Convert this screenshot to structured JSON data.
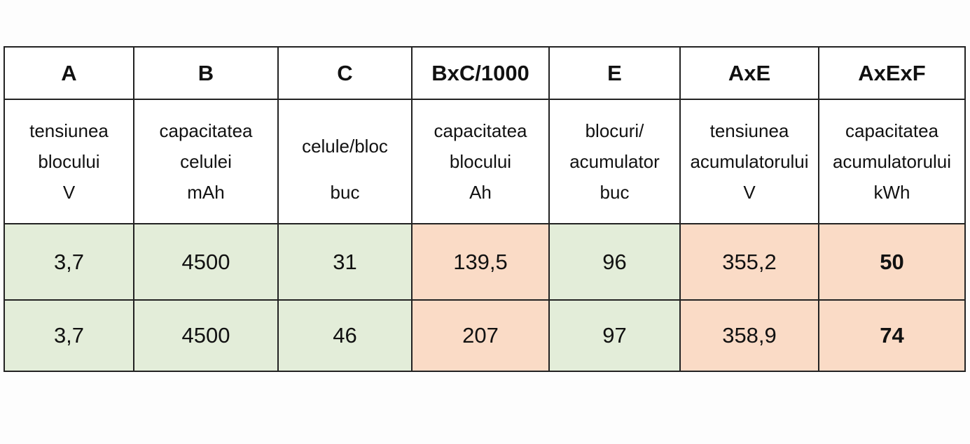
{
  "table": {
    "header": [
      "A",
      "B",
      "C",
      "BxC/1000",
      "E",
      "AxE",
      "AxExF"
    ],
    "descriptions": [
      [
        "tensiunea",
        "blocului",
        "V"
      ],
      [
        "capacitatea",
        "celulei",
        "mAh"
      ],
      [
        "celule/bloc",
        "buc"
      ],
      [
        "capacitatea",
        "blocului",
        "Ah"
      ],
      [
        "blocuri/",
        "acumulator",
        "buc"
      ],
      [
        "tensiunea",
        "acumulatorului",
        "V"
      ],
      [
        "capacitatea",
        "acumulatorului",
        "kWh"
      ]
    ],
    "rows": [
      [
        "3,7",
        "4500",
        "31",
        "139,5",
        "96",
        "355,2",
        "50"
      ],
      [
        "3,7",
        "4500",
        "46",
        "207",
        "97",
        "358,9",
        "74"
      ]
    ]
  }
}
